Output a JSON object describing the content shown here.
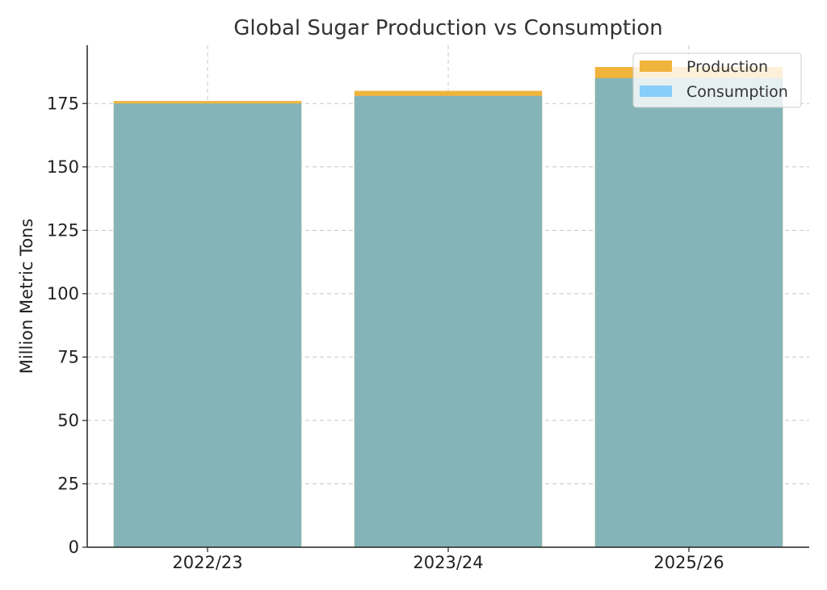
{
  "chart_data": {
    "type": "bar",
    "title": "Global Sugar Production vs Consumption",
    "xlabel": "",
    "ylabel": "Million Metric Tons",
    "categories": [
      "2022/23",
      "2023/24",
      "2025/26"
    ],
    "series": [
      {
        "name": "Production",
        "values": [
          176,
          180,
          189.4
        ],
        "color": "#F0B43C"
      },
      {
        "name": "Consumption",
        "values": [
          175,
          178,
          185
        ],
        "color": "#87CEFA"
      }
    ],
    "overlap_color": "#84B4B8",
    "ylim": [
      0,
      198
    ],
    "yticks": [
      0,
      25,
      50,
      75,
      100,
      125,
      150,
      175
    ],
    "grid": true,
    "legend_position": "top-right"
  }
}
